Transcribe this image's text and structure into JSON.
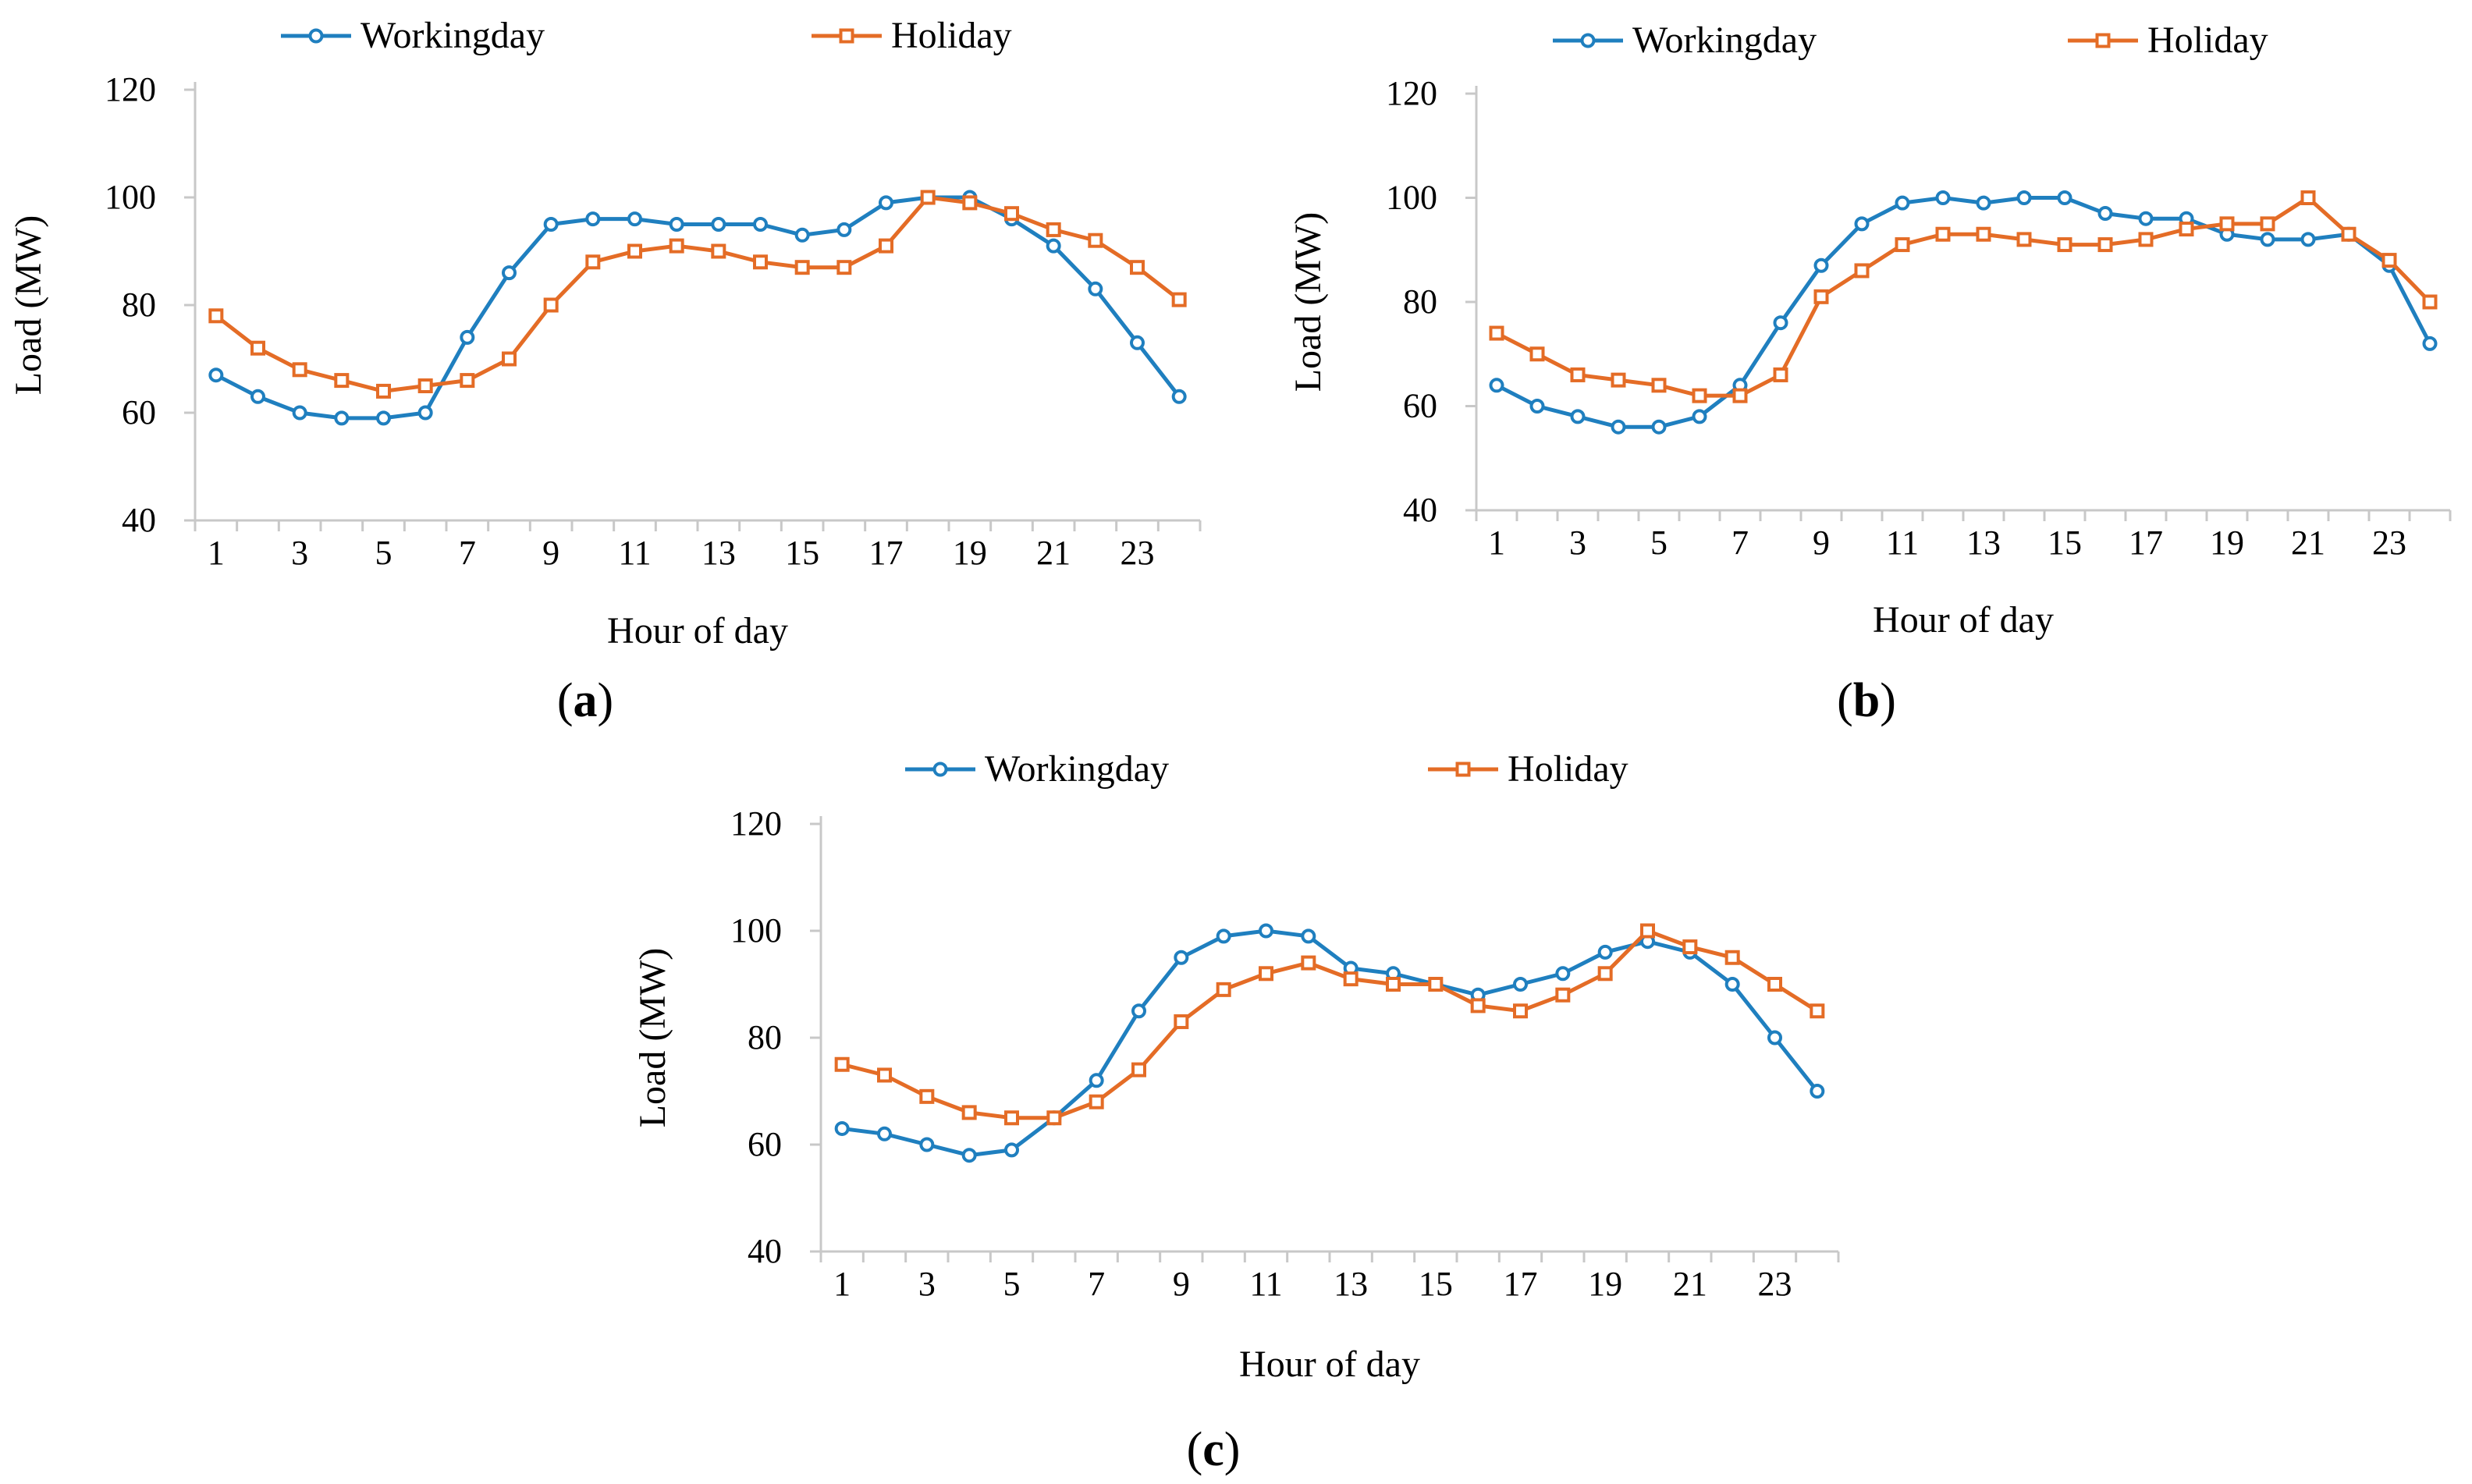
{
  "chart_data": [
    {
      "panel_label": "(a)",
      "type": "line",
      "xlabel": "Hour of day",
      "ylabel": "Load (MW)",
      "ylim": [
        40,
        120
      ],
      "yticks": [
        40,
        60,
        80,
        100,
        120
      ],
      "x": [
        1,
        2,
        3,
        4,
        5,
        6,
        7,
        8,
        9,
        10,
        11,
        12,
        13,
        14,
        15,
        16,
        17,
        18,
        19,
        20,
        21,
        22,
        23,
        24
      ],
      "xtick_labels": [
        "1",
        "3",
        "5",
        "7",
        "9",
        "11",
        "13",
        "15",
        "17",
        "19",
        "21",
        "23"
      ],
      "legend_position": "top",
      "series": [
        {
          "name": "Workingday",
          "color": "#1f7fbf",
          "marker": "circle",
          "values": [
            67,
            63,
            60,
            59,
            59,
            60,
            74,
            86,
            95,
            96,
            96,
            95,
            95,
            95,
            93,
            94,
            99,
            100,
            100,
            96,
            91,
            83,
            73,
            63
          ]
        },
        {
          "name": "Holiday",
          "color": "#e46c26",
          "marker": "square",
          "values": [
            78,
            72,
            68,
            66,
            64,
            65,
            66,
            70,
            80,
            88,
            90,
            91,
            90,
            88,
            87,
            87,
            91,
            100,
            99,
            97,
            94,
            92,
            87,
            81
          ]
        }
      ]
    },
    {
      "panel_label": "(b)",
      "type": "line",
      "xlabel": "Hour of day",
      "ylabel": "Load (MW)",
      "ylim": [
        40,
        120
      ],
      "yticks": [
        40,
        60,
        80,
        100,
        120
      ],
      "x": [
        1,
        2,
        3,
        4,
        5,
        6,
        7,
        8,
        9,
        10,
        11,
        12,
        13,
        14,
        15,
        16,
        17,
        18,
        19,
        20,
        21,
        22,
        23,
        24
      ],
      "xtick_labels": [
        "1",
        "3",
        "5",
        "7",
        "9",
        "11",
        "13",
        "15",
        "17",
        "19",
        "21",
        "23"
      ],
      "legend_position": "top",
      "series": [
        {
          "name": "Workingday",
          "color": "#1f7fbf",
          "marker": "circle",
          "values": [
            64,
            60,
            58,
            56,
            56,
            58,
            64,
            76,
            87,
            95,
            99,
            100,
            99,
            100,
            100,
            97,
            96,
            96,
            93,
            92,
            92,
            93,
            87,
            72
          ]
        },
        {
          "name": "Holiday",
          "color": "#e46c26",
          "marker": "square",
          "values": [
            74,
            70,
            66,
            65,
            64,
            62,
            62,
            66,
            81,
            86,
            91,
            93,
            93,
            92,
            91,
            91,
            92,
            94,
            95,
            95,
            100,
            93,
            88,
            80
          ]
        }
      ]
    },
    {
      "panel_label": "(c)",
      "type": "line",
      "xlabel": "Hour of day",
      "ylabel": "Load (MW)",
      "ylim": [
        40,
        120
      ],
      "yticks": [
        40,
        60,
        80,
        100,
        120
      ],
      "x": [
        1,
        2,
        3,
        4,
        5,
        6,
        7,
        8,
        9,
        10,
        11,
        12,
        13,
        14,
        15,
        16,
        17,
        18,
        19,
        20,
        21,
        22,
        23,
        24
      ],
      "xtick_labels": [
        "1",
        "3",
        "5",
        "7",
        "9",
        "11",
        "13",
        "15",
        "17",
        "19",
        "21",
        "23"
      ],
      "legend_position": "top",
      "series": [
        {
          "name": "Workingday",
          "color": "#1f7fbf",
          "marker": "circle",
          "values": [
            63,
            62,
            60,
            58,
            59,
            65,
            72,
            85,
            95,
            99,
            100,
            99,
            93,
            92,
            90,
            88,
            90,
            92,
            96,
            98,
            96,
            90,
            80,
            70
          ]
        },
        {
          "name": "Holiday",
          "color": "#e46c26",
          "marker": "square",
          "values": [
            75,
            73,
            69,
            66,
            65,
            65,
            68,
            74,
            83,
            89,
            92,
            94,
            91,
            90,
            90,
            86,
            85,
            88,
            92,
            100,
            97,
            95,
            90,
            85
          ]
        }
      ]
    }
  ]
}
